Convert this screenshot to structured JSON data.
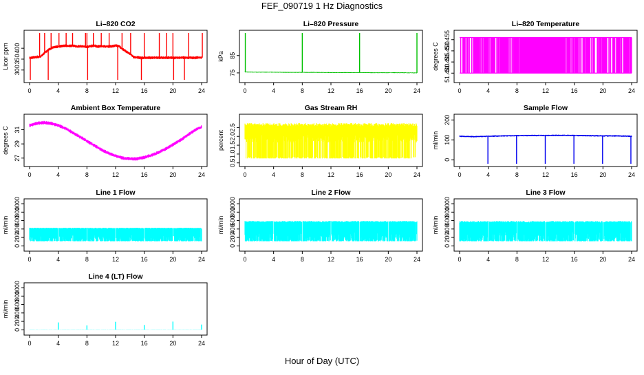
{
  "title": "FEF_090719  1 Hz Diagnostics",
  "xlabel": "Hour of Day (UTC)",
  "chart_data": [
    {
      "type": "line",
      "title": "Li–820 CO2",
      "ylabel": "Licor ppm",
      "color": "#ff0000",
      "xlim": [
        0,
        24
      ],
      "ylim": [
        255,
        470
      ],
      "xticks": [
        0,
        4,
        8,
        12,
        16,
        20,
        24
      ],
      "yticks": [
        300,
        350,
        400
      ],
      "series": [
        {
          "kind": "sampled",
          "x": [
            0,
            0.5,
            1,
            1.5,
            2,
            2.5,
            3,
            3.5,
            4,
            4.5,
            5,
            5.5,
            6,
            6.5,
            7,
            7.5,
            8,
            8.5,
            9,
            9.5,
            10,
            10.5,
            11,
            11.5,
            12,
            12.5,
            13,
            13.5,
            14,
            14.5,
            15,
            15.5,
            16,
            16.5,
            17,
            17.5,
            18,
            18.5,
            19,
            19.5,
            20,
            20.5,
            21,
            21.5,
            22,
            22.5,
            23,
            23.5,
            24
          ],
          "y": [
            355,
            358,
            360,
            362,
            375,
            390,
            400,
            405,
            408,
            410,
            412,
            410,
            412,
            408,
            410,
            408,
            406,
            410,
            412,
            408,
            410,
            409,
            408,
            410,
            412,
            409,
            395,
            385,
            375,
            360,
            358,
            356,
            356,
            357,
            356,
            357,
            356,
            357,
            356,
            357,
            356,
            357,
            356,
            357,
            356,
            357,
            356,
            357,
            357
          ],
          "noise": 14,
          "spikes_up": [
            1.4,
            2.1,
            3.0,
            4.1,
            5.1,
            6.0,
            7.8,
            8.0,
            8.9,
            10.0,
            11.1,
            12.9,
            14.1,
            16.0,
            18.1,
            19.1,
            20.0,
            22.2,
            24.1
          ],
          "spikes_down": [
            0.1,
            2.6,
            8.1,
            12.3,
            15.6,
            20.1,
            21.6
          ]
        }
      ]
    },
    {
      "type": "line",
      "title": "Li–820 Pressure",
      "ylabel": "kPa",
      "color": "#00c000",
      "xlim": [
        0,
        24
      ],
      "ylim": [
        71,
        98
      ],
      "xticks": [
        0,
        4,
        8,
        12,
        16,
        20,
        24
      ],
      "yticks": [
        75,
        85
      ],
      "series": [
        {
          "kind": "sampled",
          "x": [
            0,
            2,
            4,
            6,
            8,
            10,
            12,
            14,
            16,
            18,
            20,
            22,
            24
          ],
          "y": [
            75.5,
            75.4,
            75.4,
            75.3,
            75.3,
            75.3,
            75.2,
            75.2,
            75.2,
            75.1,
            75.1,
            75.1,
            75.0
          ],
          "noise": 0.5,
          "spikes_up": [
            0.05,
            8.0,
            16.0,
            24.0
          ],
          "spikes_down": []
        }
      ]
    },
    {
      "type": "line",
      "title": "Li–820 Temperature",
      "ylabel": "degrees C",
      "color": "#ff00ff",
      "xlim": [
        0,
        24
      ],
      "ylim": [
        51.437,
        51.458
      ],
      "xticks": [
        0,
        4,
        8,
        12,
        16,
        20,
        24
      ],
      "yticks": [
        51.44,
        51.445,
        51.45,
        51.455
      ],
      "series": [
        {
          "kind": "toggle",
          "levels": [
            51.44,
            51.456
          ],
          "toggle_rate": 0.45,
          "dense_from": 8.5,
          "dense_to": 14.5
        }
      ]
    },
    {
      "type": "line",
      "title": "Ambient Box Temperature",
      "ylabel": "degrees C",
      "color": "#ff00ff",
      "xlim": [
        0,
        24
      ],
      "ylim": [
        26.2,
        32.8
      ],
      "xticks": [
        0,
        4,
        8,
        12,
        16,
        20,
        24
      ],
      "yticks": [
        27,
        29,
        31
      ],
      "series": [
        {
          "kind": "sampled",
          "x": [
            0,
            1,
            2,
            3,
            4,
            5,
            6,
            7,
            8,
            9,
            10,
            11,
            12,
            13,
            14,
            15,
            16,
            17,
            18,
            19,
            20,
            21,
            22,
            23,
            24
          ],
          "y": [
            31.6,
            31.9,
            32.0,
            31.9,
            31.6,
            31.2,
            30.6,
            30.0,
            29.4,
            28.8,
            28.2,
            27.7,
            27.3,
            27.0,
            26.9,
            26.9,
            27.1,
            27.4,
            27.8,
            28.3,
            28.9,
            29.5,
            30.2,
            30.9,
            31.4
          ],
          "noise": 0.5,
          "spikes_up": [],
          "spikes_down": []
        }
      ]
    },
    {
      "type": "line",
      "title": "Gas Stream RH",
      "ylabel": "percent",
      "color": "#ffff00",
      "xlim": [
        0,
        24
      ],
      "ylim": [
        0.45,
        3.1
      ],
      "xticks": [
        0,
        4,
        8,
        12,
        16,
        20,
        24
      ],
      "yticks": [
        0.5,
        1.0,
        1.5,
        2.0,
        2.5
      ],
      "series": [
        {
          "kind": "band",
          "low": 0.75,
          "high": 2.75,
          "core_low": 1.65,
          "core_high": 2.55
        }
      ]
    },
    {
      "type": "line",
      "title": "Sample Flow",
      "ylabel": "ml/min",
      "color": "#0000ee",
      "xlim": [
        0,
        24
      ],
      "ylim": [
        -20,
        215
      ],
      "xticks": [
        0,
        4,
        8,
        12,
        16,
        20,
        24
      ],
      "yticks": [
        0,
        100,
        200
      ],
      "series": [
        {
          "kind": "sampled",
          "x": [
            0,
            2,
            4,
            6,
            8,
            10,
            12,
            14,
            16,
            18,
            20,
            22,
            24
          ],
          "y": [
            118,
            116,
            118,
            120,
            121,
            122,
            122,
            123,
            122,
            121,
            120,
            120,
            118
          ],
          "noise": 8,
          "spikes_up": [],
          "spikes_down": [
            3.95,
            7.95,
            11.95,
            15.95,
            19.95,
            23.9
          ]
        }
      ]
    },
    {
      "type": "line",
      "title": "Line 1 Flow",
      "ylabel": "ml/min",
      "color": "#00ffff",
      "xlim": [
        0,
        24
      ],
      "ylim": [
        -60,
        1050
      ],
      "xticks": [
        0,
        4,
        8,
        12,
        16,
        20,
        24
      ],
      "yticks": [
        0,
        200,
        400,
        600,
        800,
        1000
      ],
      "series": [
        {
          "kind": "band",
          "low": 110,
          "high": 430,
          "core_low": 110,
          "core_high": 410,
          "gaps": [
            4,
            8,
            12,
            16,
            20,
            23.9
          ]
        }
      ]
    },
    {
      "type": "line",
      "title": "Line 2 Flow",
      "ylabel": "ml/min",
      "color": "#00ffff",
      "xlim": [
        0,
        24
      ],
      "ylim": [
        -60,
        1050
      ],
      "xticks": [
        0,
        4,
        8,
        12,
        16,
        20,
        24
      ],
      "yticks": [
        0,
        200,
        400,
        600,
        800,
        1000
      ],
      "series": [
        {
          "kind": "band",
          "low": 110,
          "high": 590,
          "core_low": 110,
          "core_high": 560,
          "gaps": [
            4,
            8,
            12,
            16,
            20,
            23.9
          ]
        }
      ]
    },
    {
      "type": "line",
      "title": "Line 3 Flow",
      "ylabel": "ml/min",
      "color": "#00ffff",
      "xlim": [
        0,
        24
      ],
      "ylim": [
        -60,
        1050
      ],
      "xticks": [
        0,
        4,
        8,
        12,
        16,
        20,
        24
      ],
      "yticks": [
        0,
        200,
        400,
        600,
        800,
        1000
      ],
      "series": [
        {
          "kind": "band",
          "low": 110,
          "high": 590,
          "core_low": 110,
          "core_high": 550,
          "gaps": [
            4,
            8,
            12,
            16,
            20,
            23.9
          ]
        }
      ]
    },
    {
      "type": "line",
      "title": "Line 4 (LT) Flow",
      "ylabel": "ml/min",
      "color": "#00ffff",
      "xlim": [
        0,
        24
      ],
      "ylim": [
        -60,
        1050
      ],
      "xticks": [
        0,
        4,
        8,
        12,
        16,
        20,
        24
      ],
      "yticks": [
        0,
        200,
        400,
        600,
        800,
        1000
      ],
      "series": [
        {
          "kind": "sampled",
          "x": [
            0,
            4,
            8,
            12,
            16,
            20,
            24
          ],
          "y": [
            5,
            5,
            5,
            5,
            5,
            5,
            5
          ],
          "noise": 4,
          "spikes_up": [
            4.0,
            8.0,
            12.0,
            16.0,
            20.0,
            24.0
          ],
          "spike_heights": [
            175,
            105,
            190,
            115,
            195,
            125
          ],
          "spikes_down": []
        }
      ]
    }
  ]
}
